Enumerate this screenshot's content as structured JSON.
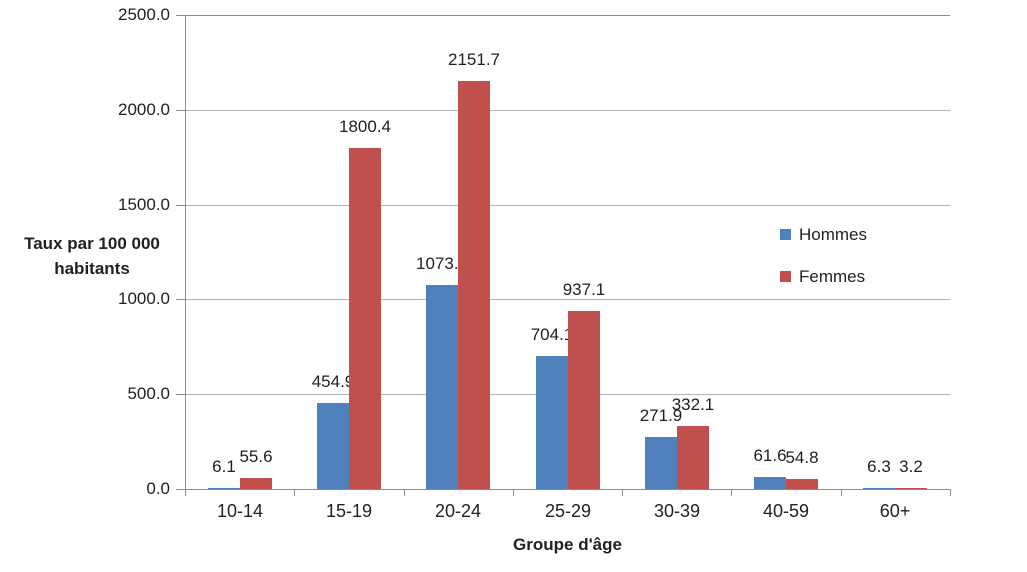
{
  "chart_data": {
    "type": "bar",
    "title": "",
    "categories": [
      "10-14",
      "15-19",
      "20-24",
      "25-29",
      "30-39",
      "40-59",
      "60+"
    ],
    "series": [
      {
        "name": "Hommes",
        "color": "#4F81BD",
        "values": [
          6.1,
          454.9,
          1073.9,
          704.1,
          271.9,
          61.6,
          6.3
        ]
      },
      {
        "name": "Femmes",
        "color": "#C0504D",
        "values": [
          55.6,
          1800.4,
          2151.7,
          937.1,
          332.1,
          54.8,
          3.2
        ]
      }
    ],
    "xlabel": "Groupe d'âge",
    "ylabel_lines": [
      "Taux par 100 000",
      "habitants"
    ],
    "ylabel": "Taux par 100 000 habitants",
    "ylim": [
      0,
      2500
    ],
    "ytick_step": 500,
    "yticks": [
      "0.0",
      "500.0",
      "1000.0",
      "1500.0",
      "2000.0",
      "2500.0"
    ],
    "data_labels": true,
    "label_decimals": 1,
    "grid": true,
    "legend_position": "right",
    "colors": {
      "grid": "#B3B3B3",
      "axis": "#8C8C8C",
      "text": "#212121",
      "background": "#FFFFFF"
    }
  }
}
